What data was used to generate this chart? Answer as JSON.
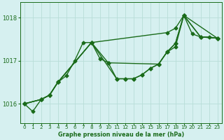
{
  "title": "Graphe pression niveau de la mer (hPa)",
  "bg_color": "#d6f0f0",
  "line_color": "#1a6b1a",
  "grid_color": "#b8ddd8",
  "ylim": [
    1015.55,
    1018.35
  ],
  "yticks": [
    1016,
    1017,
    1018
  ],
  "xlim": [
    -0.5,
    23.5
  ],
  "xticks": [
    0,
    1,
    2,
    3,
    4,
    5,
    6,
    7,
    8,
    9,
    10,
    11,
    12,
    13,
    14,
    15,
    16,
    17,
    18,
    19,
    20,
    21,
    22,
    23
  ],
  "series": [
    {
      "x": [
        0,
        1,
        2,
        3,
        4,
        5,
        6,
        7,
        8,
        9,
        10,
        11,
        12,
        13,
        14,
        15,
        16,
        17,
        18,
        19,
        20,
        21,
        22,
        23
      ],
      "y": [
        1016.0,
        1015.82,
        1016.1,
        1016.2,
        1016.5,
        1016.65,
        1017.0,
        1017.42,
        1017.42,
        1017.05,
        1016.95,
        1016.58,
        1016.58,
        1016.58,
        1016.67,
        1016.82,
        1016.92,
        1017.2,
        1017.4,
        1018.05,
        1017.62,
        1017.55,
        1017.55,
        1017.52
      ]
    },
    {
      "x": [
        0,
        2,
        3,
        4,
        8,
        17,
        18,
        19,
        23
      ],
      "y": [
        1016.0,
        1016.1,
        1016.2,
        1016.5,
        1017.42,
        1017.65,
        1017.75,
        1018.05,
        1017.52
      ]
    },
    {
      "x": [
        0,
        2,
        3,
        4,
        8,
        10,
        16,
        17,
        18,
        19,
        21,
        23
      ],
      "y": [
        1016.0,
        1016.1,
        1016.2,
        1016.5,
        1017.42,
        1016.95,
        1016.92,
        1017.2,
        1017.32,
        1018.05,
        1017.55,
        1017.52
      ]
    },
    {
      "x": [
        0,
        2,
        3,
        4,
        8,
        11,
        12,
        13,
        14,
        15,
        16,
        17,
        18,
        19,
        21,
        23
      ],
      "y": [
        1016.0,
        1016.1,
        1016.2,
        1016.5,
        1017.42,
        1016.58,
        1016.58,
        1016.58,
        1016.67,
        1016.82,
        1016.92,
        1017.2,
        1017.4,
        1018.05,
        1017.55,
        1017.52
      ]
    }
  ],
  "marker": "D",
  "markersize": 2.5,
  "linewidth": 1.0
}
